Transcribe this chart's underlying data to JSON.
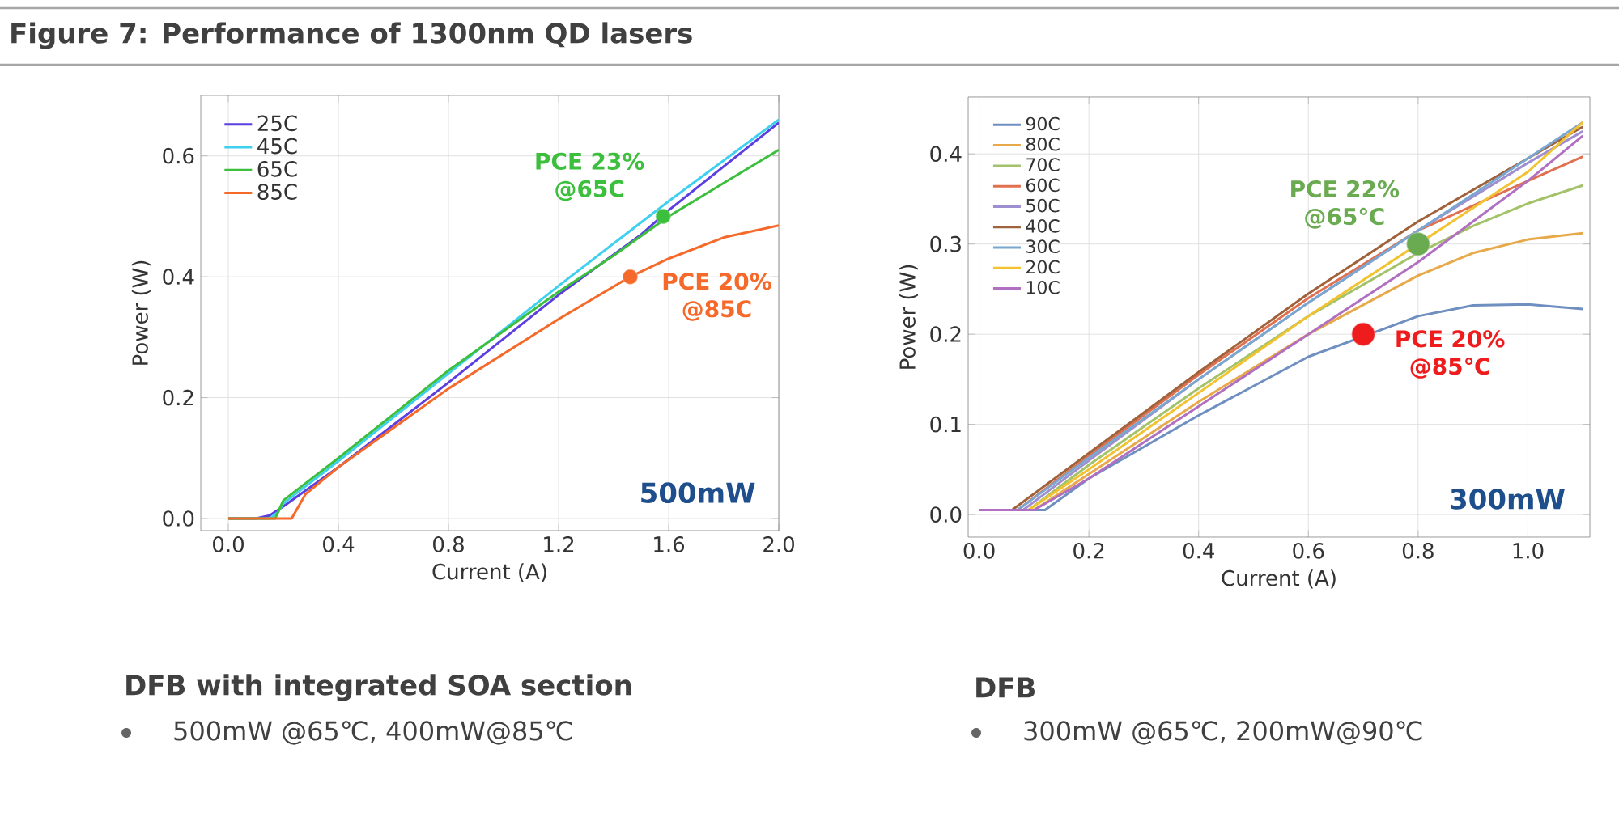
{
  "chart_data": [
    {
      "type": "line",
      "title": "Figure 7: Performance of 1300nm QD lasers",
      "xlabel": "Current (A)",
      "ylabel": "Power (W)",
      "xlim": [
        -0.1,
        2.0
      ],
      "ylim": [
        -0.02,
        0.7
      ],
      "xticks": [
        {
          "value": 0,
          "label": "0.0"
        },
        {
          "value": 0.4,
          "label": "0.4"
        },
        {
          "value": 0.8,
          "label": "0.8"
        },
        {
          "value": 1.2,
          "label": "1.2"
        },
        {
          "value": 1.6,
          "label": "1.6"
        },
        {
          "value": 2.0,
          "label": "2.0"
        }
      ],
      "yticks": [
        {
          "value": 0,
          "label": "0.0"
        },
        {
          "value": 0.2,
          "label": "0.2"
        },
        {
          "value": 0.4,
          "label": "0.4"
        },
        {
          "value": 0.6,
          "label": "0.6"
        }
      ],
      "grid": true,
      "legend": "top left",
      "series": [
        {
          "name": "25C",
          "color": "#5b3fe0",
          "x": [
            0,
            0.1,
            0.15,
            0.2,
            0.4,
            0.8,
            1.2,
            1.5,
            1.6,
            2.0
          ],
          "values": [
            0,
            0,
            0.005,
            0.02,
            0.085,
            0.225,
            0.37,
            0.47,
            0.51,
            0.655
          ]
        },
        {
          "name": "45C",
          "color": "#3fd0f0",
          "x": [
            0,
            0.15,
            0.18,
            0.2,
            0.4,
            0.8,
            1.2,
            1.6,
            2.0
          ],
          "values": [
            0,
            0,
            0.01,
            0.025,
            0.095,
            0.24,
            0.385,
            0.525,
            0.66
          ]
        },
        {
          "name": "65C",
          "color": "#3cbf3c",
          "x": [
            0,
            0.17,
            0.2,
            0.4,
            0.8,
            1.2,
            1.4,
            1.6,
            1.8,
            2.0
          ],
          "values": [
            0,
            0,
            0.03,
            0.1,
            0.245,
            0.375,
            0.435,
            0.5,
            0.555,
            0.61
          ]
        },
        {
          "name": "85C",
          "color": "#f56a2a",
          "x": [
            0,
            0.23,
            0.28,
            0.4,
            0.8,
            1.2,
            1.46,
            1.6,
            1.8,
            2.0
          ],
          "values": [
            0,
            0,
            0.04,
            0.085,
            0.215,
            0.33,
            0.4,
            0.43,
            0.465,
            0.485
          ]
        },
        {
          "type": "scatter",
          "color": "#3cbf3c",
          "x": [
            1.58
          ],
          "values": [
            0.5
          ]
        },
        {
          "type": "scatter",
          "color": "#f56a2a",
          "x": [
            1.46
          ],
          "values": [
            0.4
          ]
        }
      ],
      "annotations": [
        {
          "text": "PCE 23% @65C",
          "x": 1.58,
          "y": 0.5
        },
        {
          "text": "PCE 20% @85C",
          "x": 1.46,
          "y": 0.4
        },
        "500mW",
        "DFB with integrated SOA section",
        "500mW @65℃, 400mW@85℃"
      ]
    },
    {
      "type": "line",
      "xlabel": "Current (A)",
      "ylabel": "Power (W)",
      "xlim": [
        -0.02,
        1.113
      ],
      "ylim": [
        -0.025,
        0.463
      ],
      "xticks": [
        {
          "value": 0,
          "label": "0.0"
        },
        {
          "value": 0.2,
          "label": "0.2"
        },
        {
          "value": 0.4,
          "label": "0.4"
        },
        {
          "value": 0.6,
          "label": "0.6"
        },
        {
          "value": 0.8,
          "label": "0.8"
        },
        {
          "value": 1.0,
          "label": "1.0"
        }
      ],
      "yticks": [
        {
          "value": 0,
          "label": "0.0"
        },
        {
          "value": 0.1,
          "label": "0.1"
        },
        {
          "value": 0.2,
          "label": "0.2"
        },
        {
          "value": 0.3,
          "label": "0.3"
        },
        {
          "value": 0.4,
          "label": "0.4"
        }
      ],
      "grid": true,
      "legend": "top left",
      "series": [
        {
          "name": "90C",
          "color": "#6f8fc0",
          "x": [
            0,
            0.12,
            0.2,
            0.4,
            0.6,
            0.8,
            0.9,
            1.0,
            1.1
          ],
          "values": [
            0.005,
            0.005,
            0.04,
            0.11,
            0.175,
            0.22,
            0.232,
            0.233,
            0.228
          ]
        },
        {
          "name": "80C",
          "color": "#e8a94a",
          "x": [
            0,
            0.1,
            0.2,
            0.4,
            0.6,
            0.8,
            0.9,
            1.0,
            1.1
          ],
          "values": [
            0.005,
            0.005,
            0.045,
            0.125,
            0.2,
            0.265,
            0.29,
            0.305,
            0.312
          ]
        },
        {
          "name": "70C",
          "color": "#a3c26a",
          "x": [
            0,
            0.09,
            0.2,
            0.4,
            0.6,
            0.8,
            0.9,
            1.0,
            1.1
          ],
          "values": [
            0.005,
            0.005,
            0.055,
            0.14,
            0.22,
            0.29,
            0.32,
            0.345,
            0.365
          ]
        },
        {
          "name": "60C",
          "color": "#e0704f",
          "x": [
            0,
            0.07,
            0.2,
            0.4,
            0.6,
            0.8,
            1.0,
            1.1
          ],
          "values": [
            0.005,
            0.005,
            0.065,
            0.155,
            0.24,
            0.315,
            0.37,
            0.397
          ]
        },
        {
          "name": "50C",
          "color": "#a08fd0",
          "x": [
            0,
            0.08,
            0.2,
            0.4,
            0.6,
            0.8,
            1.0,
            1.1
          ],
          "values": [
            0.005,
            0.005,
            0.06,
            0.15,
            0.235,
            0.315,
            0.39,
            0.425
          ]
        },
        {
          "name": "40C",
          "color": "#a0623a",
          "x": [
            0,
            0.06,
            0.2,
            0.4,
            0.6,
            0.8,
            1.0,
            1.1
          ],
          "values": [
            0.005,
            0.005,
            0.068,
            0.158,
            0.245,
            0.325,
            0.395,
            0.43
          ]
        },
        {
          "name": "30C",
          "color": "#7aa7d0",
          "x": [
            0,
            0.07,
            0.2,
            0.4,
            0.6,
            0.8,
            1.0,
            1.1
          ],
          "values": [
            0.005,
            0.005,
            0.063,
            0.15,
            0.235,
            0.315,
            0.395,
            0.435
          ]
        },
        {
          "name": "20C",
          "color": "#f2c230",
          "x": [
            0,
            0.09,
            0.2,
            0.4,
            0.6,
            0.9,
            1.0,
            1.1
          ],
          "values": [
            0.005,
            0.005,
            0.05,
            0.135,
            0.22,
            0.34,
            0.38,
            0.435
          ]
        },
        {
          "name": "10C",
          "color": "#b06fc0",
          "x": [
            0,
            0.1,
            0.2,
            0.4,
            0.6,
            0.8,
            1.0,
            1.1
          ],
          "values": [
            0.005,
            0.005,
            0.04,
            0.12,
            0.2,
            0.28,
            0.37,
            0.42
          ]
        },
        {
          "type": "scatter",
          "color": "#6aaa50",
          "x": [
            0.8
          ],
          "values": [
            0.3
          ]
        },
        {
          "type": "scatter",
          "color": "#ee1c1c",
          "x": [
            0.7
          ],
          "values": [
            0.2
          ]
        }
      ],
      "annotations": [
        {
          "text": "PCE 22% @65℃",
          "x": 0.8,
          "y": 0.3
        },
        {
          "text": "PCE 20% @85℃",
          "x": 0.7,
          "y": 0.2
        },
        "300mW",
        "DFB",
        "300mW @65℃, 200mW@90℃"
      ]
    }
  ]
}
